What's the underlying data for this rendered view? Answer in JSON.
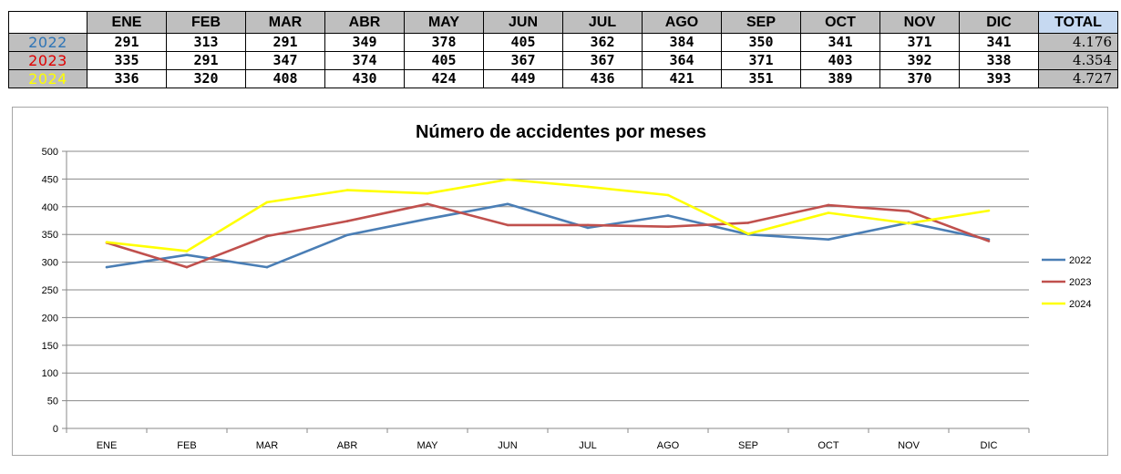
{
  "table": {
    "headers": [
      "ENE",
      "FEB",
      "MAR",
      "ABR",
      "MAY",
      "JUN",
      "JUL",
      "AGO",
      "SEP",
      "OCT",
      "NOV",
      "DIC"
    ],
    "total_header": "TOTAL",
    "rows": [
      {
        "year": "2022",
        "color": "#2e75b6",
        "values": [
          "291",
          "313",
          "291",
          "349",
          "378",
          "405",
          "362",
          "384",
          "350",
          "341",
          "371",
          "341"
        ],
        "total": "4.176"
      },
      {
        "year": "2023",
        "color": "#e00000",
        "values": [
          "335",
          "291",
          "347",
          "374",
          "405",
          "367",
          "367",
          "364",
          "371",
          "403",
          "392",
          "338"
        ],
        "total": "4.354"
      },
      {
        "year": "2024",
        "color": "#ffff00",
        "values": [
          "336",
          "320",
          "408",
          "430",
          "424",
          "449",
          "436",
          "421",
          "351",
          "389",
          "370",
          "393"
        ],
        "total": "4.727"
      }
    ]
  },
  "chart_data": {
    "type": "line",
    "title": "Número de accidentes por meses",
    "categories": [
      "ENE",
      "FEB",
      "MAR",
      "ABR",
      "MAY",
      "JUN",
      "JUL",
      "AGO",
      "SEP",
      "OCT",
      "NOV",
      "DIC"
    ],
    "series": [
      {
        "name": "2022",
        "color": "#4a7eb5",
        "values": [
          291,
          313,
          291,
          349,
          378,
          405,
          362,
          384,
          350,
          341,
          371,
          341
        ]
      },
      {
        "name": "2023",
        "color": "#c0504d",
        "values": [
          335,
          291,
          347,
          374,
          405,
          367,
          367,
          364,
          371,
          403,
          392,
          338
        ]
      },
      {
        "name": "2024",
        "color": "#ffff00",
        "values": [
          336,
          320,
          408,
          430,
          424,
          449,
          436,
          421,
          351,
          389,
          370,
          393
        ]
      }
    ],
    "yticks": [
      "0",
      "50",
      "100",
      "150",
      "200",
      "250",
      "300",
      "350",
      "400",
      "450",
      "500"
    ],
    "ylim": [
      0,
      500
    ],
    "grid": true,
    "legend": "right"
  }
}
